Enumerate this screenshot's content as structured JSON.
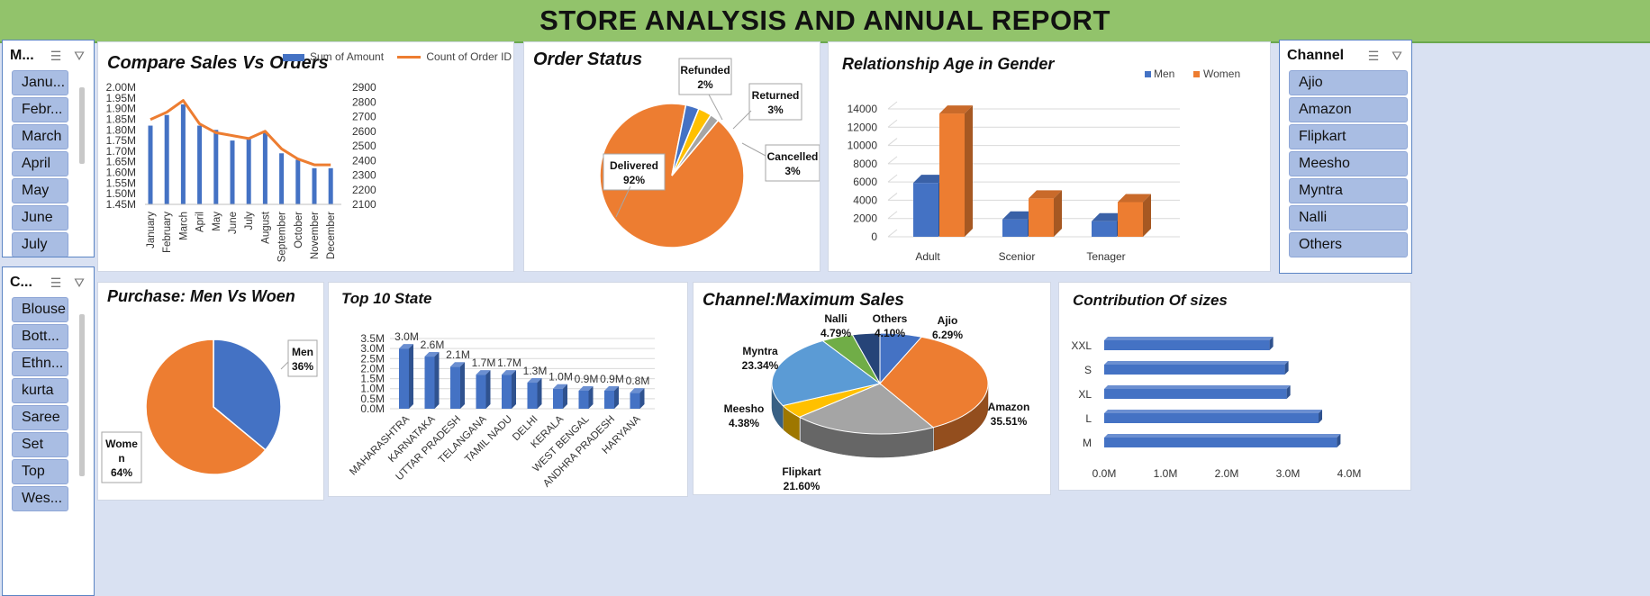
{
  "title": "STORE ANALYSIS AND ANNUAL REPORT",
  "colors": {
    "blue": "#4472c4",
    "orange": "#ed7d31",
    "gray": "#a5a5a5",
    "gold": "#ffc000",
    "lightblue": "#5b9bd5",
    "green": "#70ad47",
    "navy": "#264478",
    "banner": "#92c36b"
  },
  "slicers": {
    "month": {
      "title": "M...",
      "items": [
        "Janu...",
        "Febr...",
        "March",
        "April",
        "May",
        "June",
        "July"
      ]
    },
    "category": {
      "title": "C...",
      "items": [
        "Blouse",
        "Bott...",
        "Ethn...",
        "kurta",
        "Saree",
        "Set",
        "Top",
        "Wes..."
      ]
    },
    "channel": {
      "title": "Channel",
      "items": [
        "Ajio",
        "Amazon",
        "Flipkart",
        "Meesho",
        "Myntra",
        "Nalli",
        "Others"
      ]
    },
    "icons": {
      "multiselect": "multi-select-icon",
      "clear": "clear-filter-icon"
    }
  },
  "chart_data": [
    {
      "id": "sales_vs_orders",
      "type": "bar",
      "title": "Compare Sales Vs Orders",
      "categories": [
        "January",
        "February",
        "March",
        "April",
        "May",
        "June",
        "July",
        "August",
        "September",
        "October",
        "November",
        "December"
      ],
      "series": [
        {
          "name": "Sum of Amount",
          "type": "bar",
          "axis": "left",
          "values": [
            1.82,
            1.87,
            1.92,
            1.82,
            1.8,
            1.75,
            1.76,
            1.79,
            1.69,
            1.66,
            1.62,
            1.62
          ]
        },
        {
          "name": "Count of Order ID",
          "type": "line",
          "axis": "right",
          "values": [
            2680,
            2730,
            2810,
            2650,
            2590,
            2570,
            2550,
            2600,
            2480,
            2410,
            2370,
            2370
          ]
        }
      ],
      "y_left": {
        "min": 1.45,
        "max": 2.0,
        "ticks": [
          "2.00M",
          "1.95M",
          "1.90M",
          "1.85M",
          "1.80M",
          "1.75M",
          "1.70M",
          "1.65M",
          "1.60M",
          "1.55M",
          "1.50M",
          "1.45M"
        ]
      },
      "y_right": {
        "min": 2100,
        "max": 2900,
        "ticks": [
          "2900",
          "2800",
          "2700",
          "2600",
          "2500",
          "2400",
          "2300",
          "2200",
          "2100"
        ]
      },
      "legend": "top"
    },
    {
      "id": "order_status",
      "type": "pie",
      "title": "Order Status",
      "slices": [
        {
          "label": "Delivered",
          "value": 92,
          "pct": "92%",
          "color": "#ed7d31"
        },
        {
          "label": "Cancelled",
          "value": 3,
          "pct": "3%",
          "color": "#4472c4"
        },
        {
          "label": "Returned",
          "value": 3,
          "pct": "3%",
          "color": "#ffc000"
        },
        {
          "label": "Refunded",
          "value": 2,
          "pct": "2%",
          "color": "#a5a5a5"
        }
      ]
    },
    {
      "id": "age_gender",
      "type": "bar",
      "title": "Relationship Age in Gender",
      "categories": [
        "Adult",
        "Scenior",
        "Tenager"
      ],
      "series": [
        {
          "name": "Men",
          "values": [
            5900,
            1900,
            1700
          ],
          "color": "#4472c4"
        },
        {
          "name": "Women",
          "values": [
            13500,
            4200,
            3800
          ],
          "color": "#ed7d31"
        }
      ],
      "ylim": [
        0,
        14000
      ],
      "ticks": [
        "14000",
        "12000",
        "10000",
        "8000",
        "6000",
        "4000",
        "2000",
        "0"
      ],
      "legend": "top-right"
    },
    {
      "id": "men_vs_women",
      "type": "pie",
      "title": "Purchase: Men Vs Woen",
      "slices": [
        {
          "label": "Men",
          "value": 36,
          "pct": "36%",
          "color": "#4472c4"
        },
        {
          "label": "Wome\nn",
          "value": 64,
          "pct": "64%",
          "color": "#ed7d31"
        }
      ]
    },
    {
      "id": "top_states",
      "type": "bar",
      "title": "Top 10 State",
      "categories": [
        "MAHARASHTRA",
        "KARNATAKA",
        "UTTAR PRADESH",
        "TELANGANA",
        "TAMIL NADU",
        "DELHI",
        "KERALA",
        "WEST BENGAL",
        "ANDHRA PRADESH",
        "HARYANA"
      ],
      "values": [
        3.0,
        2.6,
        2.1,
        1.7,
        1.7,
        1.3,
        1.0,
        0.9,
        0.9,
        0.8
      ],
      "data_labels": [
        "3.0M",
        "2.6M",
        "2.1M",
        "1.7M",
        "1.7M",
        "1.3M",
        "1.0M",
        "0.9M",
        "0.9M",
        "0.8M"
      ],
      "ylim": [
        0,
        3.5
      ],
      "ticks": [
        "3.5M",
        "3.0M",
        "2.5M",
        "2.0M",
        "1.5M",
        "1.0M",
        "0.5M",
        "0.0M"
      ]
    },
    {
      "id": "channel_sales",
      "type": "pie",
      "title": "Channel:Maximum Sales",
      "slices": [
        {
          "label": "Ajio",
          "value": 6.29,
          "pct": "6.29%",
          "color": "#4472c4"
        },
        {
          "label": "Amazon",
          "value": 35.51,
          "pct": "35.51%",
          "color": "#ed7d31"
        },
        {
          "label": "Flipkart",
          "value": 21.6,
          "pct": "21.60%",
          "color": "#a5a5a5"
        },
        {
          "label": "Meesho",
          "value": 4.38,
          "pct": "4.38%",
          "color": "#ffc000"
        },
        {
          "label": "Myntra",
          "value": 23.34,
          "pct": "23.34%",
          "color": "#5b9bd5"
        },
        {
          "label": "Nalli",
          "value": 4.79,
          "pct": "4.79%",
          "color": "#70ad47"
        },
        {
          "label": "Others",
          "value": 4.1,
          "pct": "4.10%",
          "color": "#264478"
        }
      ]
    },
    {
      "id": "sizes",
      "type": "bar",
      "orientation": "horizontal",
      "title": "Contribution Of sizes",
      "categories": [
        "XXL",
        "S",
        "XL",
        "L",
        "M"
      ],
      "values": [
        2.7,
        2.95,
        2.98,
        3.5,
        3.8
      ],
      "xlim": [
        0,
        4
      ],
      "ticks": [
        "0.0M",
        "1.0M",
        "2.0M",
        "3.0M",
        "4.0M"
      ]
    }
  ]
}
